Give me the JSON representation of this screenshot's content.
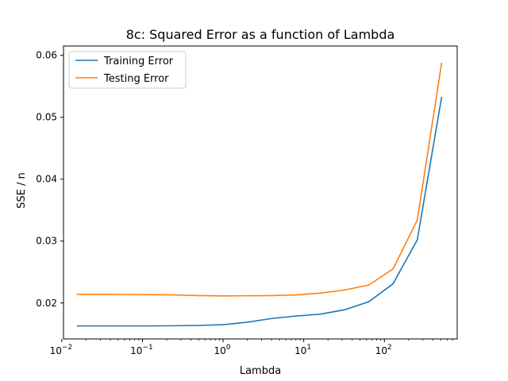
{
  "chart_data": {
    "type": "line",
    "title": "8c: Squared Error as a function of Lambda",
    "xlabel": "Lambda",
    "ylabel": "SSE / n",
    "xscale": "log",
    "xlim": [
      0.0105,
      800
    ],
    "ylim": [
      0.0142,
      0.0615
    ],
    "x": [
      0.015625,
      0.03125,
      0.0625,
      0.125,
      0.25,
      0.5,
      1,
      2,
      4,
      8,
      16,
      32,
      64,
      128,
      256,
      512
    ],
    "series": [
      {
        "name": "Training Error",
        "color": "#1f77b4",
        "values": [
          0.0163,
          0.0163,
          0.0163,
          0.0163,
          0.01633,
          0.01638,
          0.0165,
          0.0169,
          0.0175,
          0.0179,
          0.0182,
          0.0189,
          0.0202,
          0.0231,
          0.0302,
          0.0532
        ]
      },
      {
        "name": "Testing Error",
        "color": "#ff7f0e",
        "values": [
          0.0214,
          0.0214,
          0.02138,
          0.02135,
          0.0213,
          0.0212,
          0.02115,
          0.02117,
          0.0212,
          0.0213,
          0.0216,
          0.0221,
          0.0229,
          0.0255,
          0.0334,
          0.0587
        ]
      }
    ],
    "x_ticks": [
      {
        "value": 0.01,
        "base": "10",
        "exp": "−2"
      },
      {
        "value": 0.1,
        "base": "10",
        "exp": "−1"
      },
      {
        "value": 1,
        "base": "10",
        "exp": "0"
      },
      {
        "value": 10,
        "base": "10",
        "exp": "1"
      },
      {
        "value": 100,
        "base": "10",
        "exp": "2"
      }
    ],
    "y_ticks": [
      {
        "value": 0.02,
        "label": "0.02"
      },
      {
        "value": 0.03,
        "label": "0.03"
      },
      {
        "value": 0.04,
        "label": "0.04"
      },
      {
        "value": 0.05,
        "label": "0.05"
      },
      {
        "value": 0.06,
        "label": "0.06"
      }
    ],
    "legend": "top-left",
    "grid": false
  }
}
